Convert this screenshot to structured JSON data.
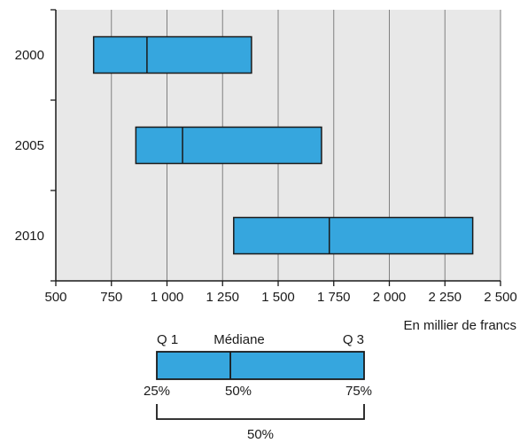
{
  "chart_data": {
    "type": "box",
    "orientation": "horizontal",
    "categories": [
      "2000",
      "2005",
      "2010"
    ],
    "boxes": [
      {
        "category": "2000",
        "q1": 670,
        "median": 910,
        "q3": 1380
      },
      {
        "category": "2005",
        "q1": 860,
        "median": 1070,
        "q3": 1695
      },
      {
        "category": "2010",
        "q1": 1300,
        "median": 1730,
        "q3": 2375
      }
    ],
    "x_ticks": [
      500,
      750,
      1000,
      1250,
      1500,
      1750,
      2000,
      2250,
      2500
    ],
    "x_tick_labels": [
      "500",
      "750",
      "1 000",
      "1 250",
      "1 500",
      "1 750",
      "2 000",
      "2 250",
      "2 500"
    ],
    "xlim": [
      500,
      2500
    ],
    "xlabel": "En millier de francs",
    "grid": "vertical",
    "colors": {
      "box_fill": "#36a6de",
      "plot_background": "#e8e8e8",
      "grid": "#808080",
      "outline": "#1a1a1a"
    },
    "legend": {
      "q1_label": "Q 1",
      "median_label": "Médiane",
      "q3_label": "Q 3",
      "q1_percent": "25%",
      "median_percent": "50%",
      "q3_percent": "75%",
      "interquartile_percent": "50%",
      "median_fraction": 0.355
    }
  }
}
